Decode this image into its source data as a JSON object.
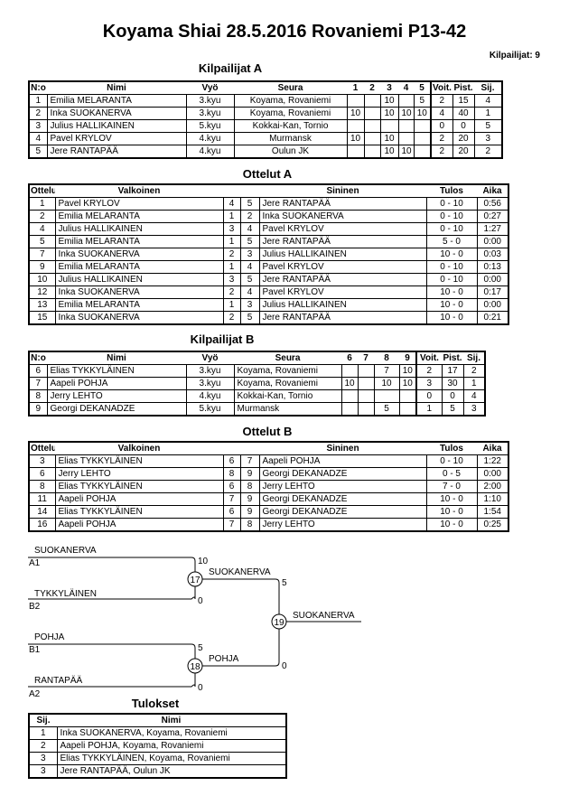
{
  "header": {
    "title": "Koyama Shiai  28.5.2016  Rovaniemi   P13-42",
    "count": "Kilpailijat: 9"
  },
  "competitors_a": {
    "title": "Kilpailijat A",
    "headers": [
      "N:o",
      "Nimi",
      "Vyö",
      "Seura",
      "1",
      "2",
      "3",
      "4",
      "5",
      "Voit.",
      "Pist.",
      "Sij."
    ],
    "rows": [
      [
        "1",
        "Emilia MELARANTA",
        "3.kyu",
        "Koyama, Rovaniemi",
        "",
        "",
        "10",
        "",
        "5",
        "2",
        "15",
        "4"
      ],
      [
        "2",
        "Inka SUOKANERVA",
        "3.kyu",
        "Koyama, Rovaniemi",
        "10",
        "",
        "10",
        "10",
        "10",
        "4",
        "40",
        "1"
      ],
      [
        "3",
        "Julius HALLIKAINEN",
        "5.kyu",
        "Kokkai-Kan, Tornio",
        "",
        "",
        "",
        "",
        "",
        "0",
        "0",
        "5"
      ],
      [
        "4",
        "Pavel KRYLOV",
        "4.kyu",
        "Murmansk",
        "10",
        "",
        "10",
        "",
        "",
        "2",
        "20",
        "3"
      ],
      [
        "5",
        "Jere RANTAPÄÄ",
        "4.kyu",
        "Oulun JK",
        "",
        "",
        "10",
        "10",
        "",
        "2",
        "20",
        "2"
      ]
    ]
  },
  "matches_a": {
    "title": "Ottelut A",
    "headers": [
      "Ottelu",
      "Valkoinen",
      "",
      "",
      "Sininen",
      "Tulos",
      "Aika"
    ],
    "rows": [
      [
        "1",
        "Pavel KRYLOV",
        "4",
        "5",
        "Jere RANTAPÄÄ",
        "0 - 10",
        "0:56"
      ],
      [
        "2",
        "Emilia MELARANTA",
        "1",
        "2",
        "Inka SUOKANERVA",
        "0 - 10",
        "0:27"
      ],
      [
        "4",
        "Julius HALLIKAINEN",
        "3",
        "4",
        "Pavel KRYLOV",
        "0 - 10",
        "1:27"
      ],
      [
        "5",
        "Emilia MELARANTA",
        "1",
        "5",
        "Jere RANTAPÄÄ",
        "5 - 0",
        "0:00"
      ],
      [
        "7",
        "Inka SUOKANERVA",
        "2",
        "3",
        "Julius HALLIKAINEN",
        "10 - 0",
        "0:03"
      ],
      [
        "9",
        "Emilia MELARANTA",
        "1",
        "4",
        "Pavel KRYLOV",
        "0 - 10",
        "0:13"
      ],
      [
        "10",
        "Julius HALLIKAINEN",
        "3",
        "5",
        "Jere RANTAPÄÄ",
        "0 - 10",
        "0:00"
      ],
      [
        "12",
        "Inka SUOKANERVA",
        "2",
        "4",
        "Pavel KRYLOV",
        "10 - 0",
        "0:17"
      ],
      [
        "13",
        "Emilia MELARANTA",
        "1",
        "3",
        "Julius HALLIKAINEN",
        "10 - 0",
        "0:00"
      ],
      [
        "15",
        "Inka SUOKANERVA",
        "2",
        "5",
        "Jere RANTAPÄÄ",
        "10 - 0",
        "0:21"
      ]
    ]
  },
  "competitors_b": {
    "title": "Kilpailijat B",
    "headers": [
      "N:o",
      "Nimi",
      "Vyö",
      "Seura",
      "6",
      "7",
      "8",
      "9",
      "Voit.",
      "Pist.",
      "Sij."
    ],
    "rows": [
      [
        "6",
        "Elias TYKKYLÄINEN",
        "3.kyu",
        "Koyama, Rovaniemi",
        "",
        "",
        "7",
        "10",
        "2",
        "17",
        "2"
      ],
      [
        "7",
        "Aapeli POHJA",
        "3.kyu",
        "Koyama, Rovaniemi",
        "10",
        "",
        "10",
        "10",
        "3",
        "30",
        "1"
      ],
      [
        "8",
        "Jerry LEHTO",
        "4.kyu",
        "Kokkai-Kan, Tornio",
        "",
        "",
        "",
        "",
        "0",
        "0",
        "4"
      ],
      [
        "9",
        "Georgi DEKANADZE",
        "5.kyu",
        "Murmansk",
        "",
        "",
        "5",
        "",
        "1",
        "5",
        "3"
      ]
    ]
  },
  "matches_b": {
    "title": "Ottelut B",
    "headers": [
      "Ottelu",
      "Valkoinen",
      "",
      "",
      "Sininen",
      "Tulos",
      "Aika"
    ],
    "rows": [
      [
        "3",
        "Elias TYKKYLÄINEN",
        "6",
        "7",
        "Aapeli POHJA",
        "0 - 10",
        "1:22"
      ],
      [
        "6",
        "Jerry LEHTO",
        "8",
        "9",
        "Georgi DEKANADZE",
        "0 - 5",
        "0:00"
      ],
      [
        "8",
        "Elias TYKKYLÄINEN",
        "6",
        "8",
        "Jerry LEHTO",
        "7 - 0",
        "2:00"
      ],
      [
        "11",
        "Aapeli POHJA",
        "7",
        "9",
        "Georgi DEKANADZE",
        "10 - 0",
        "1:10"
      ],
      [
        "14",
        "Elias TYKKYLÄINEN",
        "6",
        "9",
        "Georgi DEKANADZE",
        "10 - 0",
        "1:54"
      ],
      [
        "16",
        "Aapeli POHJA",
        "7",
        "8",
        "Jerry LEHTO",
        "10 - 0",
        "0:25"
      ]
    ]
  },
  "bracket": {
    "semi1": {
      "match": "17",
      "top_name": "SUOKANERVA",
      "top_seed": "A1",
      "top_score": "10",
      "bottom_name": "TYKKYLÄINEN",
      "bottom_seed": "B2",
      "bottom_score": "0",
      "winner": "SUOKANERVA"
    },
    "semi2": {
      "match": "18",
      "top_name": "POHJA",
      "top_seed": "B1",
      "top_score": "5",
      "bottom_name": "RANTAPÄÄ",
      "bottom_seed": "A2",
      "bottom_score": "0",
      "winner": "POHJA"
    },
    "final": {
      "match": "19",
      "top_score": "5",
      "bottom_score": "0",
      "winner": "SUOKANERVA"
    }
  },
  "results": {
    "title": "Tulokset",
    "headers": [
      "Sij.",
      "Nimi"
    ],
    "rows": [
      [
        "1",
        "Inka SUOKANERVA, Koyama, Rovaniemi"
      ],
      [
        "2",
        "Aapeli POHJA, Koyama, Rovaniemi"
      ],
      [
        "3",
        "Elias TYKKYLÄINEN, Koyama, Rovaniemi"
      ],
      [
        "3",
        "Jere RANTAPÄÄ, Oulun JK"
      ]
    ]
  }
}
